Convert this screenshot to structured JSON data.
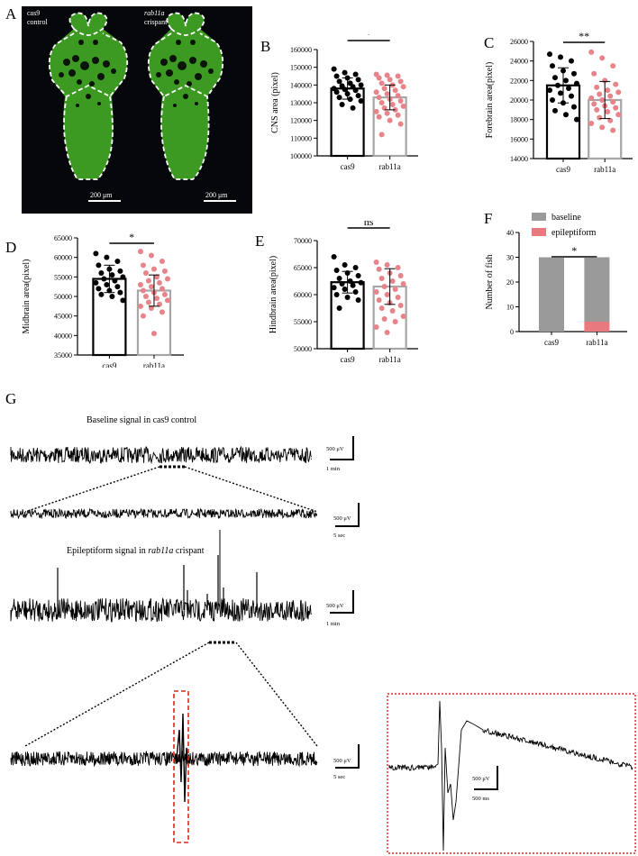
{
  "panels": {
    "A": {
      "letter": "A",
      "left_label_line1": "cas9",
      "left_label_line2": "control",
      "right_label_line1": "rab11a",
      "right_label_line2": "crispant",
      "scale_left": "200 μm",
      "scale_right": "200 μm"
    },
    "B": {
      "letter": "B"
    },
    "C": {
      "letter": "C"
    },
    "D": {
      "letter": "D"
    },
    "E": {
      "letter": "E"
    },
    "F": {
      "letter": "F"
    },
    "G": {
      "letter": "G",
      "title_baseline": "Baseline signal in cas9 control",
      "title_epi_prefix": "Epileptiform signal in ",
      "title_epi_italic": "rab11a",
      "title_epi_suffix": " crispant",
      "scale_uv": "500 μV",
      "scale_1min": "1 min",
      "scale_5sec": "5 sec",
      "scale_500ms": "500 ms"
    }
  },
  "colors": {
    "cas9_bar": "#000000",
    "rab11a_bar": "#a6a6a6",
    "rab11a_dots": "#e8838a",
    "baseline": "#9a9a9a",
    "epileptiform": "#e8797f",
    "highlight": "#d62a1f",
    "fluorescence": "#3c9a22"
  },
  "chart_data": [
    {
      "id": "B",
      "type": "bar",
      "ylabel": "CNS area (pixel)",
      "categories": [
        "cas9",
        "rab11a"
      ],
      "values": [
        138000,
        133000
      ],
      "sd": [
        6000,
        7000
      ],
      "ylim": [
        100000,
        160000
      ],
      "yticks": [
        "100000",
        "110000",
        "120000",
        "130000",
        "140000",
        "150000",
        "160000"
      ],
      "significance": "*",
      "points": [
        [
          149000,
          147000,
          146000,
          145000,
          144000,
          143000,
          142000,
          141000,
          140000,
          139500,
          139000,
          138000,
          137500,
          137000,
          136000,
          135000,
          134000,
          133000,
          132000,
          131000,
          129000,
          127000
        ],
        [
          146000,
          145500,
          145000,
          144000,
          143000,
          142000,
          141000,
          140000,
          139000,
          138000,
          137000,
          136000,
          135000,
          134000,
          133000,
          132000,
          131000,
          130000,
          129000,
          128000,
          127000,
          126000,
          125000,
          124000,
          123000,
          122000,
          120000,
          118000,
          112000
        ]
      ]
    },
    {
      "id": "C",
      "type": "bar",
      "ylabel": "Forebrain area(pixel)",
      "categories": [
        "cas9",
        "rab11a"
      ],
      "values": [
        21500,
        20000
      ],
      "sd": [
        1800,
        1900
      ],
      "ylim": [
        14000,
        26000
      ],
      "yticks": [
        "14000",
        "16000",
        "18000",
        "20000",
        "22000",
        "24000",
        "26000"
      ],
      "significance": "**",
      "points": [
        [
          24700,
          24400,
          24000,
          23500,
          23000,
          22700,
          22300,
          22000,
          21700,
          21500,
          21200,
          21000,
          20700,
          20400,
          20000,
          19700,
          19300,
          18900,
          18500,
          18000
        ],
        [
          24900,
          24300,
          23500,
          22700,
          22000,
          21600,
          21300,
          21000,
          20800,
          20600,
          20400,
          20200,
          20000,
          19800,
          19600,
          19400,
          19200,
          19000,
          18800,
          18500,
          18200,
          17900,
          17600,
          17200,
          16900
        ]
      ]
    },
    {
      "id": "D",
      "type": "bar",
      "ylabel": "Midbrain area(pixel)",
      "categories": [
        "cas9",
        "rab11a"
      ],
      "values": [
        54500,
        51500
      ],
      "sd": [
        3500,
        4000
      ],
      "ylim": [
        35000,
        65000
      ],
      "yticks": [
        "35000",
        "40000",
        "45000",
        "50000",
        "55000",
        "60000",
        "65000"
      ],
      "significance": "*",
      "points": [
        [
          61000,
          60000,
          59000,
          58000,
          57000,
          56500,
          56000,
          55500,
          55000,
          54500,
          54000,
          53500,
          53000,
          52500,
          52000,
          51500,
          51000,
          50500,
          50000,
          49000
        ],
        [
          61500,
          60500,
          59000,
          58000,
          57000,
          56500,
          56000,
          55000,
          54500,
          54000,
          53500,
          53000,
          52500,
          52000,
          51500,
          51000,
          50500,
          50000,
          49500,
          49000,
          48500,
          48000,
          47500,
          47000,
          46000,
          45000,
          40500
        ]
      ]
    },
    {
      "id": "E",
      "type": "bar",
      "ylabel": "Hindbrain area(pixel)",
      "categories": [
        "cas9",
        "rab11a"
      ],
      "values": [
        62300,
        61500
      ],
      "sd": [
        2000,
        3300
      ],
      "ylim": [
        50000,
        70000
      ],
      "yticks": [
        "50000",
        "55000",
        "60000",
        "65000",
        "70000"
      ],
      "significance": "ns",
      "points": [
        [
          67000,
          65500,
          65000,
          64500,
          64000,
          63500,
          63000,
          62500,
          62200,
          62000,
          61700,
          61300,
          61000,
          60500,
          60000,
          59500,
          59000,
          57500
        ],
        [
          66000,
          65500,
          65000,
          64700,
          64000,
          63500,
          63000,
          62500,
          62000,
          61500,
          61000,
          60500,
          60000,
          59500,
          59000,
          58500,
          58000,
          57500,
          57000,
          56000,
          55500,
          55000,
          54000,
          53000
        ]
      ]
    },
    {
      "id": "F",
      "type": "bar",
      "stacked": true,
      "ylabel": "Number of fish",
      "categories": [
        "cas9",
        "rab11a"
      ],
      "ylim": [
        0,
        40
      ],
      "yticks": [
        "0",
        "10",
        "20",
        "30",
        "40"
      ],
      "significance": "*",
      "series": [
        {
          "name": "baseline",
          "values": [
            30,
            26
          ]
        },
        {
          "name": "epileptiform",
          "values": [
            0,
            4
          ]
        }
      ],
      "legend_placement": "top"
    }
  ]
}
